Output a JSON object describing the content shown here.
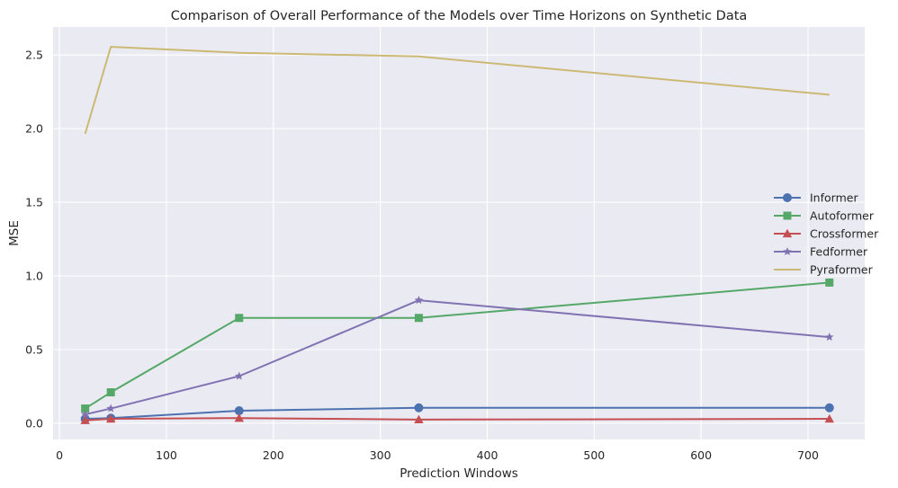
{
  "chart_data": {
    "type": "line",
    "title": "Comparison of Overall Performance of the Models over Time Horizons on Synthetic Data",
    "xlabel": "Prediction Windows",
    "ylabel": "MSE",
    "xlim": [
      -6,
      753
    ],
    "ylim": [
      -0.11,
      2.69
    ],
    "xticks": [
      0,
      100,
      200,
      300,
      400,
      500,
      600,
      700
    ],
    "yticks": [
      0.0,
      0.5,
      1.0,
      1.5,
      2.0,
      2.5
    ],
    "xtick_labels": [
      "0",
      "100",
      "200",
      "300",
      "400",
      "500",
      "600",
      "700"
    ],
    "ytick_labels": [
      "0.0",
      "0.5",
      "1.0",
      "1.5",
      "2.0",
      "2.5"
    ],
    "grid": true,
    "legend_position": "center-right",
    "x": [
      24,
      48,
      168,
      336,
      720
    ],
    "series": [
      {
        "name": "Informer",
        "values": [
          0.03,
          0.035,
          0.085,
          0.105,
          0.105
        ],
        "color": "#4c72b0",
        "marker": "circle"
      },
      {
        "name": "Autoformer",
        "values": [
          0.1,
          0.21,
          0.715,
          0.715,
          0.955
        ],
        "color": "#55a868",
        "marker": "square"
      },
      {
        "name": "Crossformer",
        "values": [
          0.02,
          0.03,
          0.035,
          0.025,
          0.03
        ],
        "color": "#c44e52",
        "marker": "triangle"
      },
      {
        "name": "Fedformer",
        "values": [
          0.06,
          0.1,
          0.32,
          0.835,
          0.585
        ],
        "color": "#8172b2",
        "marker": "star"
      },
      {
        "name": "Pyraformer",
        "values": [
          1.965,
          2.555,
          2.515,
          2.49,
          2.23
        ],
        "color": "#ccb974",
        "marker": "none"
      }
    ]
  }
}
